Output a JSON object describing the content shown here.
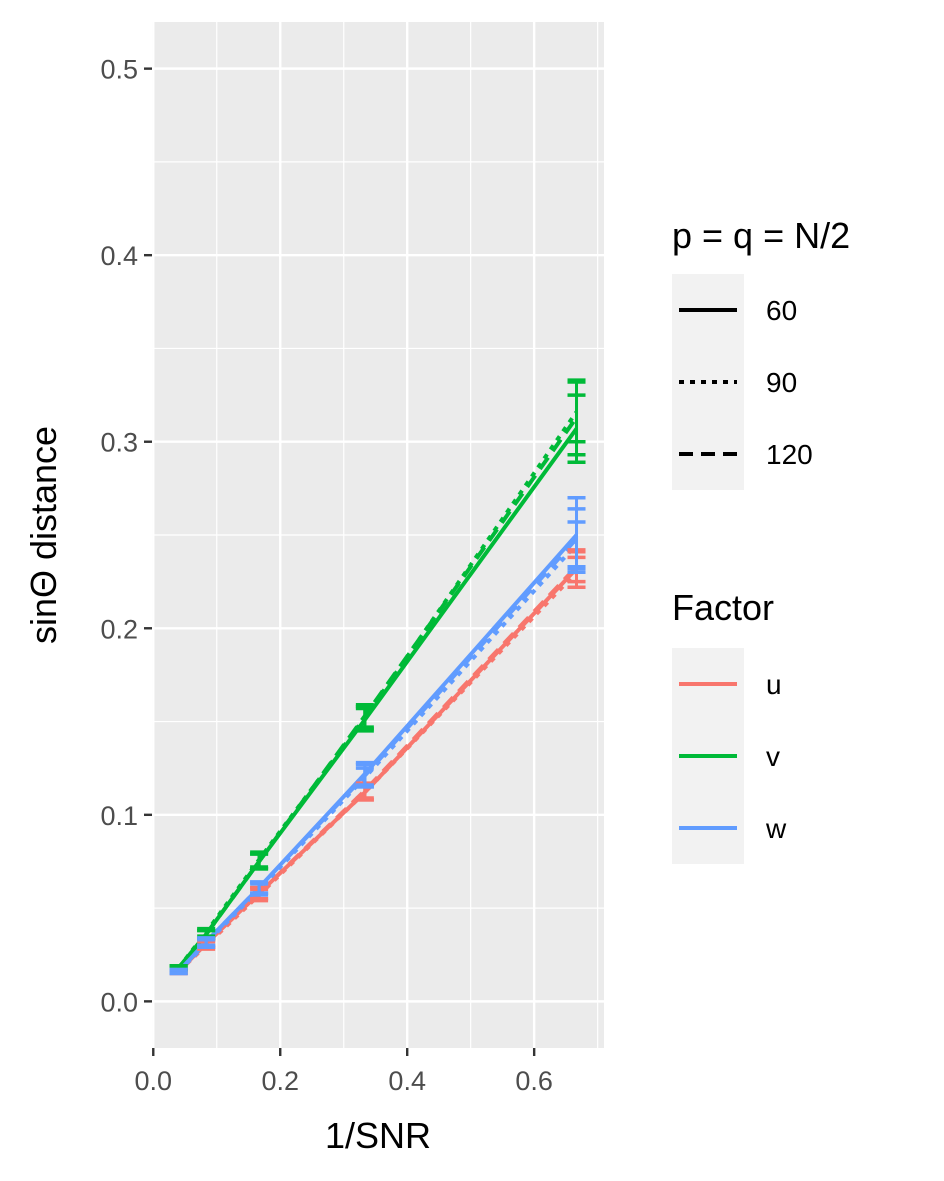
{
  "chart_data": {
    "type": "line",
    "xlabel": "1/SNR",
    "ylabel": "sinΘ distance",
    "xlim": [
      -0.002,
      0.71
    ],
    "ylim": [
      -0.025,
      0.525
    ],
    "xticks": [
      0.0,
      0.2,
      0.4,
      0.6
    ],
    "xtick_labels": [
      "0.0",
      "0.2",
      "0.4",
      "0.6"
    ],
    "xticks_minor": [
      0.1,
      0.3,
      0.5,
      0.7
    ],
    "yticks": [
      0.0,
      0.1,
      0.2,
      0.3,
      0.4,
      0.5
    ],
    "ytick_labels": [
      "0.0",
      "0.1",
      "0.2",
      "0.3",
      "0.4",
      "0.5"
    ],
    "yticks_minor": [
      0.05,
      0.15,
      0.25,
      0.35,
      0.45
    ],
    "grid": true,
    "x": [
      0.04,
      0.0833,
      0.1667,
      0.3333,
      0.6667
    ],
    "colors": {
      "u": "#F8766D",
      "v": "#00BA38",
      "w": "#619CFF",
      "panel": "#EBEBEB",
      "grid": "#FFFFFF",
      "legend_key": "#F2F2F2"
    },
    "legend_linetype": {
      "title": "p = q = N/2",
      "entries": [
        {
          "label": "60",
          "dash": "solid"
        },
        {
          "label": "90",
          "dash": "dotted"
        },
        {
          "label": "120",
          "dash": "dashed"
        }
      ]
    },
    "legend_color": {
      "title": "Factor",
      "entries": [
        {
          "label": "u",
          "color": "#F8766D"
        },
        {
          "label": "v",
          "color": "#00BA38"
        },
        {
          "label": "w",
          "color": "#619CFF"
        }
      ]
    },
    "legend_position": "right",
    "series": [
      {
        "factor": "u",
        "p": "60",
        "dash": "solid",
        "values": [
          0.016,
          0.031,
          0.058,
          0.112,
          0.232
        ],
        "err": [
          0.001,
          0.002,
          0.003,
          0.004,
          0.01
        ]
      },
      {
        "factor": "u",
        "p": "90",
        "dash": "dotted",
        "values": [
          0.016,
          0.03,
          0.057,
          0.112,
          0.23
        ],
        "err": [
          0.001,
          0.002,
          0.003,
          0.004,
          0.008
        ]
      },
      {
        "factor": "u",
        "p": "120",
        "dash": "dashed",
        "values": [
          0.016,
          0.031,
          0.058,
          0.113,
          0.233
        ],
        "err": [
          0.001,
          0.002,
          0.003,
          0.004,
          0.008
        ]
      },
      {
        "factor": "v",
        "p": "60",
        "dash": "solid",
        "values": [
          0.018,
          0.036,
          0.075,
          0.151,
          0.307
        ],
        "err": [
          0.001,
          0.002,
          0.004,
          0.006,
          0.018
        ]
      },
      {
        "factor": "v",
        "p": "90",
        "dash": "dotted",
        "values": [
          0.018,
          0.037,
          0.076,
          0.152,
          0.316
        ],
        "err": [
          0.001,
          0.002,
          0.004,
          0.006,
          0.016
        ]
      },
      {
        "factor": "v",
        "p": "120",
        "dash": "dashed",
        "values": [
          0.018,
          0.036,
          0.075,
          0.153,
          0.313
        ],
        "err": [
          0.001,
          0.002,
          0.004,
          0.006,
          0.02
        ]
      },
      {
        "factor": "w",
        "p": "60",
        "dash": "solid",
        "values": [
          0.016,
          0.032,
          0.061,
          0.122,
          0.25
        ],
        "err": [
          0.001,
          0.002,
          0.003,
          0.006,
          0.02
        ]
      },
      {
        "factor": "w",
        "p": "90",
        "dash": "dotted",
        "values": [
          0.016,
          0.031,
          0.06,
          0.12,
          0.245
        ],
        "err": [
          0.001,
          0.002,
          0.003,
          0.005,
          0.012
        ]
      },
      {
        "factor": "w",
        "p": "120",
        "dash": "dashed",
        "values": [
          0.016,
          0.032,
          0.061,
          0.121,
          0.248
        ],
        "err": [
          0.001,
          0.002,
          0.003,
          0.006,
          0.016
        ]
      }
    ]
  }
}
